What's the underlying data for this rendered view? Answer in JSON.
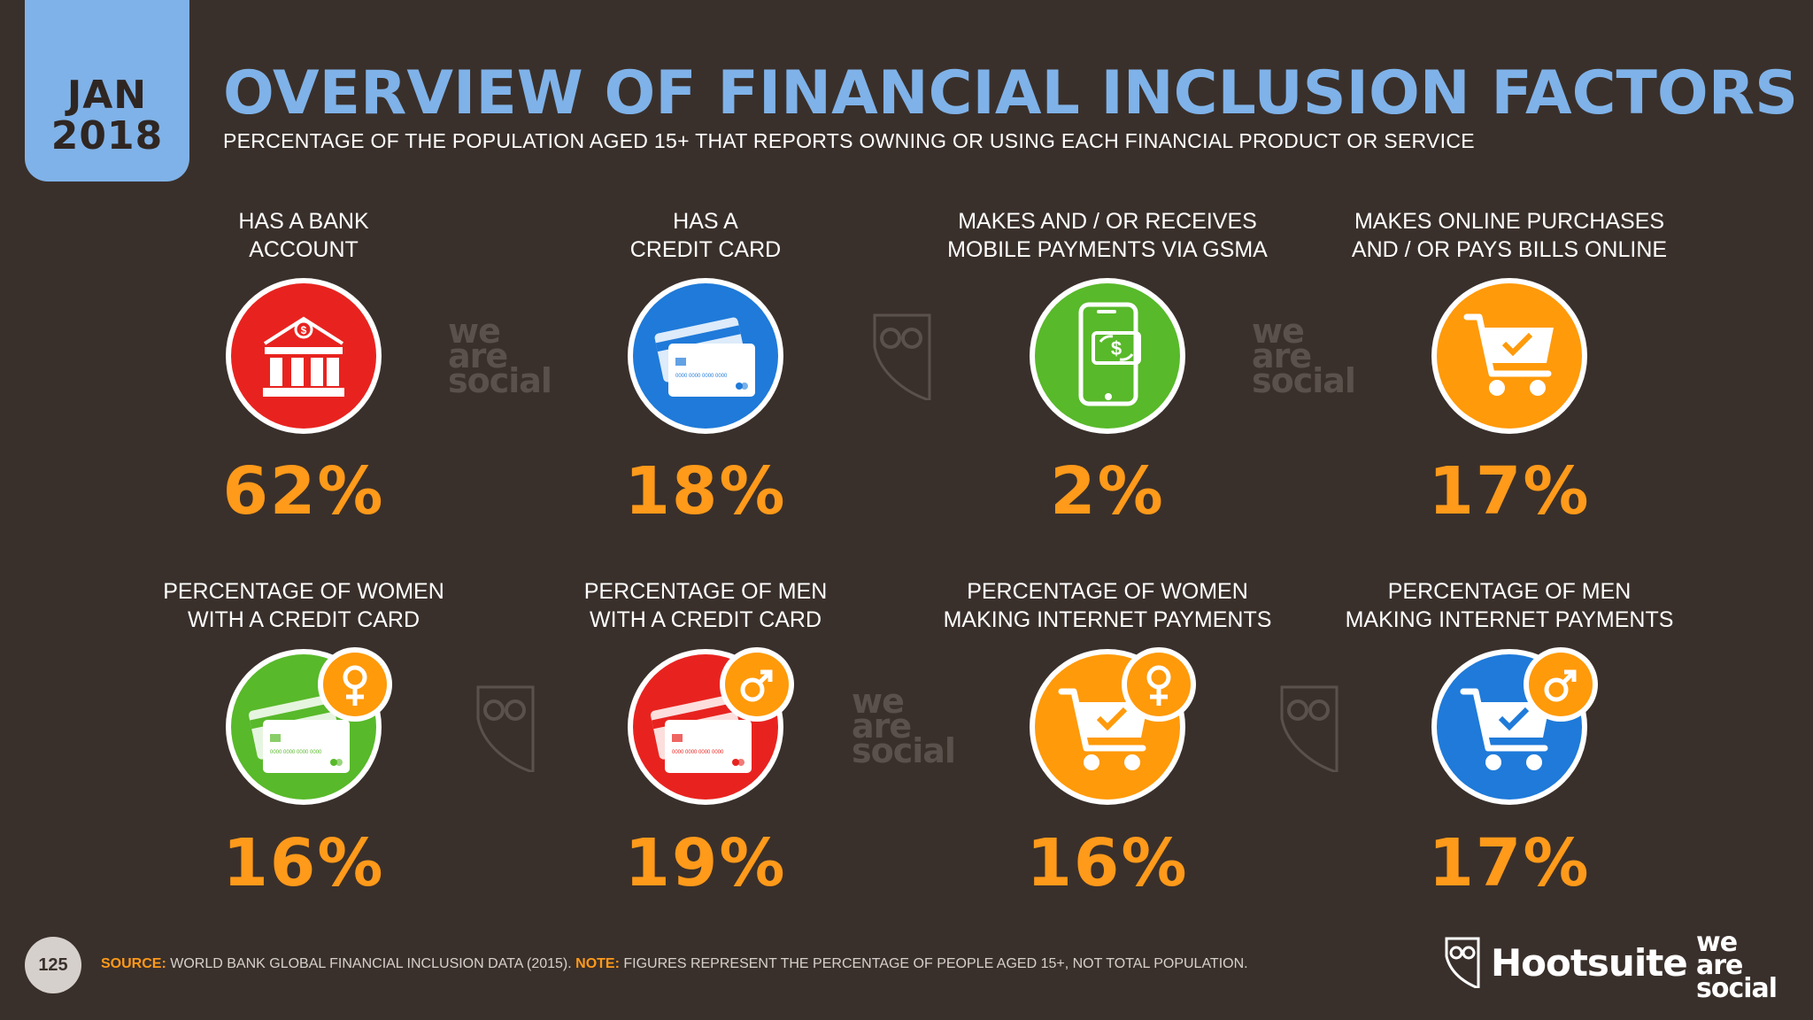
{
  "header": {
    "date_line1": "JAN",
    "date_line2": "2018",
    "title": "OVERVIEW OF FINANCIAL INCLUSION FACTORS",
    "subtitle": "PERCENTAGE OF THE POPULATION AGED 15+ THAT REPORTS OWNING OR USING EACH FINANCIAL PRODUCT OR SERVICE"
  },
  "stats": [
    {
      "label": "HAS A BANK\nACCOUNT",
      "value": "62%",
      "icon": "bank-icon",
      "color": "#e8231f"
    },
    {
      "label": "HAS A\nCREDIT CARD",
      "value": "18%",
      "icon": "credit-card-icon",
      "color": "#1f7ad9"
    },
    {
      "label": "MAKES AND / OR RECEIVES\nMOBILE PAYMENTS VIA GSMA",
      "value": "2%",
      "icon": "mobile-payment-icon",
      "color": "#58b92a"
    },
    {
      "label": "MAKES ONLINE PURCHASES\nAND / OR PAYS BILLS ONLINE",
      "value": "17%",
      "icon": "shopping-cart-icon",
      "color": "#ff9a0a"
    },
    {
      "label": "PERCENTAGE OF WOMEN\nWITH A CREDIT CARD",
      "value": "16%",
      "icon": "credit-card-female-icon",
      "color": "#58b92a"
    },
    {
      "label": "PERCENTAGE OF MEN\nWITH A CREDIT CARD",
      "value": "19%",
      "icon": "credit-card-male-icon",
      "color": "#e8231f"
    },
    {
      "label": "PERCENTAGE OF WOMEN\nMAKING INTERNET PAYMENTS",
      "value": "16%",
      "icon": "shopping-cart-female-icon",
      "color": "#ff9a0a"
    },
    {
      "label": "PERCENTAGE OF MEN\nMAKING INTERNET PAYMENTS",
      "value": "17%",
      "icon": "shopping-cart-male-icon",
      "color": "#1f7ad9"
    }
  ],
  "watermark": {
    "line1": "we",
    "line2": "are",
    "line3": "social"
  },
  "card_number": "0000 0000 0000 0000",
  "footer": {
    "page_number": "125",
    "source_label": "SOURCE:",
    "source_text": "WORLD BANK GLOBAL FINANCIAL INCLUSION DATA (2015).",
    "note_label": "NOTE:",
    "note_text": "FIGURES REPRESENT THE PERCENTAGE OF PEOPLE AGED 15+, NOT TOTAL POPULATION.",
    "hootsuite": "Hootsuite",
    "tm": "™",
    "was_line1": "we",
    "was_line2": "are",
    "was_line3": "social"
  }
}
